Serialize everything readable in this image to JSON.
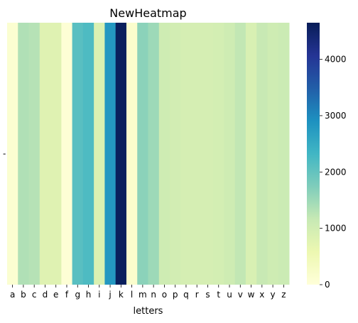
{
  "chart_data": {
    "type": "heatmap",
    "title": "NewHeatmap",
    "xlabel": "letters",
    "ylabel": "",
    "categories": [
      "a",
      "b",
      "c",
      "d",
      "e",
      "f",
      "g",
      "h",
      "i",
      "j",
      "k",
      "l",
      "m",
      "n",
      "o",
      "p",
      "q",
      "r",
      "s",
      "t",
      "u",
      "v",
      "w",
      "x",
      "y",
      "z"
    ],
    "y_tick_labels": [
      "-"
    ],
    "values": [
      [
        120,
        1350,
        1300,
        800,
        800,
        60,
        2100,
        2200,
        850,
        2800,
        4600,
        170,
        1650,
        1500,
        1050,
        1000,
        950,
        950,
        950,
        980,
        1050,
        1200,
        900,
        1150,
        1050,
        1100
      ]
    ],
    "colorbar": {
      "min": 0,
      "max": 4650,
      "ticks": [
        0,
        1000,
        2000,
        3000,
        4000
      ]
    },
    "colormap": "YlGnBu",
    "colormap_stops": [
      "#ffffd9",
      "#edf8b1",
      "#c7e9b4",
      "#7fcdbb",
      "#41b6c4",
      "#1d91c0",
      "#225ea8",
      "#253494",
      "#081d58"
    ],
    "grid": false
  }
}
